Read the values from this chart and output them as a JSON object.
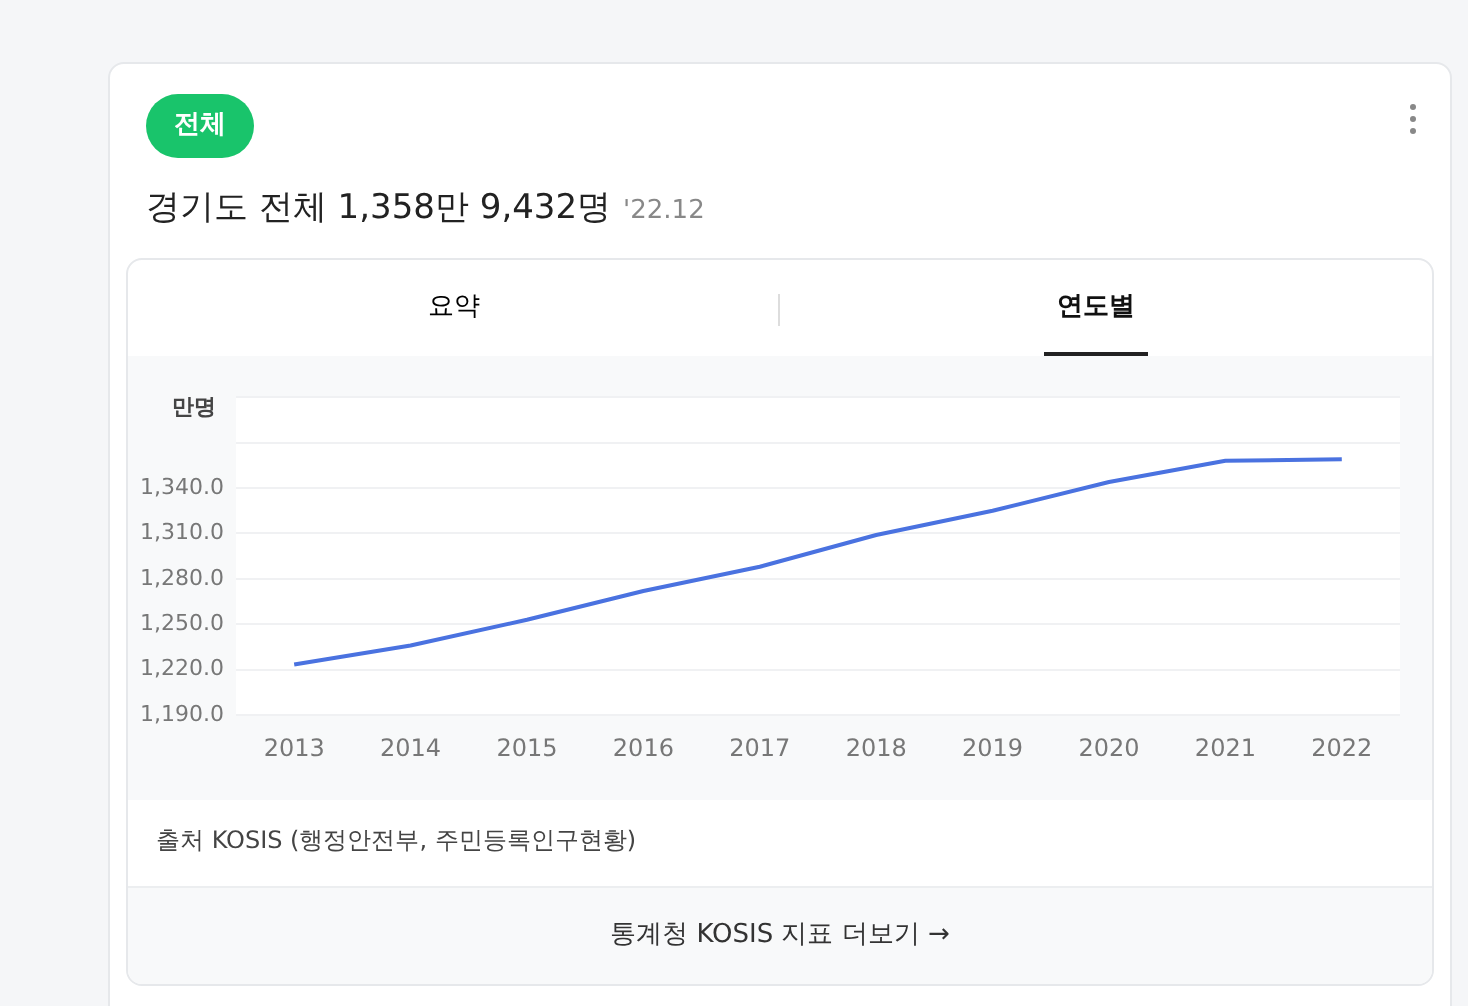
{
  "chart_data": {
    "type": "line",
    "title": "경기도 전체 1,358만 9,432명",
    "subtitle": "'22.12",
    "ylabel": "만명",
    "categories": [
      "2013",
      "2014",
      "2015",
      "2016",
      "2017",
      "2018",
      "2019",
      "2020",
      "2021",
      "2022"
    ],
    "series": [
      {
        "color": "#4a72e0",
        "values": [
          1223.5,
          1236,
          1253,
          1272,
          1288,
          1309,
          1325,
          1344,
          1358,
          1359
        ]
      }
    ],
    "ylim": [
      1190,
      1400
    ],
    "yticks": [
      {
        "value": 1190,
        "label": "1,190.0"
      },
      {
        "value": 1220,
        "label": "1,220.0"
      },
      {
        "value": 1250,
        "label": "1,250.0"
      },
      {
        "value": 1280,
        "label": "1,280.0"
      },
      {
        "value": 1310,
        "label": "1,310.0"
      },
      {
        "value": 1340,
        "label": "1,340.0"
      },
      {
        "value": 1370,
        "label": null
      },
      {
        "value": 1400,
        "label": null
      }
    ],
    "grid": "y",
    "legend": false,
    "marker": "none",
    "line_style": "solid",
    "annotations": [
      "전체",
      "요약",
      "연도별",
      "출처 KOSIS (행정안전부, 주민등록인구현황)",
      "통계청 KOSIS 지표 더보기 →"
    ]
  }
}
